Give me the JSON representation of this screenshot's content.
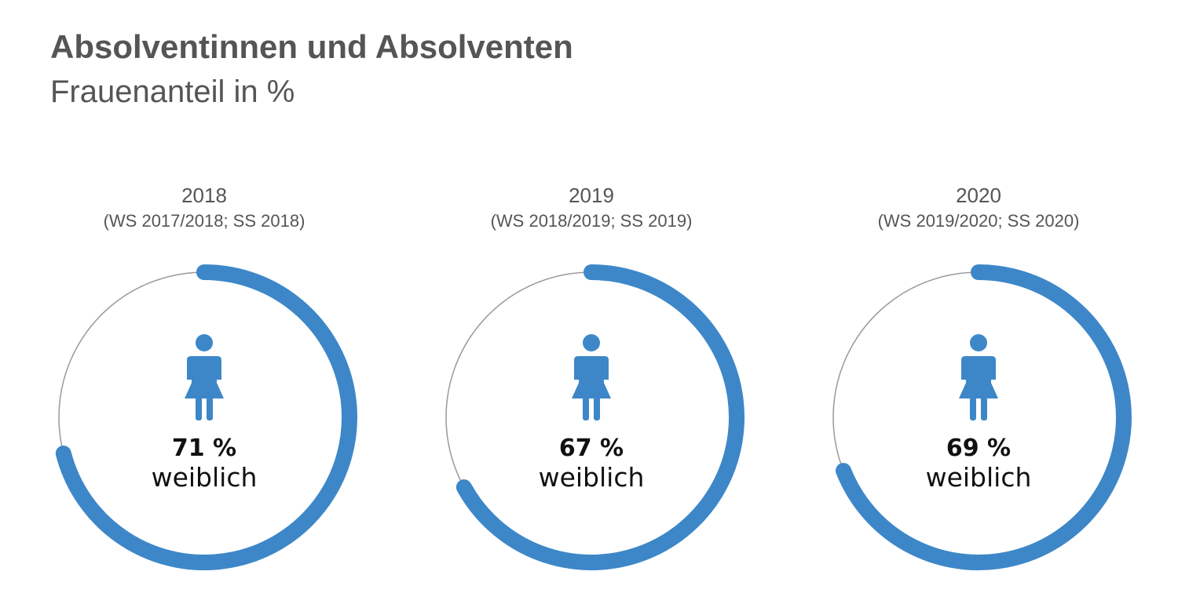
{
  "title": "Absolventinnen und Absolventen",
  "subtitle": "Frauenanteil in %",
  "colors": {
    "accent": "#3d87c8",
    "track": "#999999",
    "text": "#555555",
    "value": "#111111"
  },
  "icon": "female-figure-icon",
  "chart_data": {
    "type": "pie",
    "title": "Absolventinnen und Absolventen",
    "subtitle": "Frauenanteil in %",
    "unit": "%",
    "items": [
      {
        "year": "2018",
        "semesters": "(WS 2017/2018; SS 2018)",
        "value": 71,
        "value_label": "71 %",
        "caption": "weiblich"
      },
      {
        "year": "2019",
        "semesters": "(WS 2018/2019; SS 2019)",
        "value": 67,
        "value_label": "67 %",
        "caption": "weiblich"
      },
      {
        "year": "2020",
        "semesters": "(WS 2019/2020; SS 2020)",
        "value": 69,
        "value_label": "69 %",
        "caption": "weiblich"
      }
    ]
  }
}
